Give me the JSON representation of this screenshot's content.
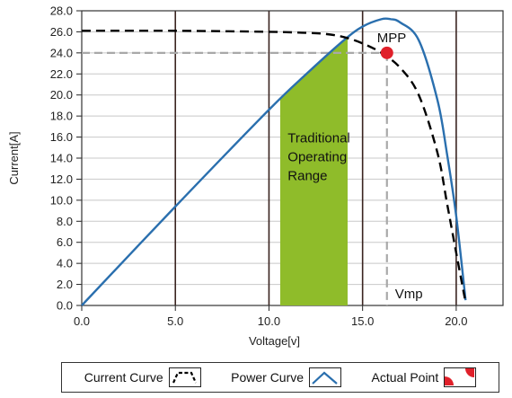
{
  "chart_data": {
    "type": "line",
    "xlabel": "Voltage[v]",
    "ylabel": "Current[A]",
    "xlim": [
      0,
      22.5
    ],
    "ylim": [
      0,
      28
    ],
    "x_ticks": [
      "0.0",
      "5.0",
      "10.0",
      "15.0",
      "20.0"
    ],
    "y_ticks": [
      "0.0",
      "2.0",
      "4.0",
      "6.0",
      "8.0",
      "10.0",
      "12.0",
      "14.0",
      "16.0",
      "18.0",
      "20.0",
      "22.0",
      "24.0",
      "26.0",
      "28.0"
    ],
    "grid": "horizontal-gray-vertical-dark",
    "series": [
      {
        "name": "Current Curve",
        "style": "dashed",
        "color": "#000000",
        "x": [
          0,
          5,
          10,
          12,
          13,
          14,
          15,
          16,
          17,
          18,
          19,
          19.5,
          20,
          20.5
        ],
        "y": [
          26.1,
          26.1,
          26.0,
          25.9,
          25.8,
          25.5,
          24.9,
          24.0,
          22.6,
          20.0,
          14.5,
          9.8,
          5.0,
          0.3
        ]
      },
      {
        "name": "Power Curve",
        "style": "solid",
        "color": "#2a6fae",
        "x": [
          0,
          5,
          10,
          12,
          14,
          15,
          16,
          16.5,
          17,
          18,
          19,
          19.5,
          20,
          20.5
        ],
        "y": [
          0,
          9.4,
          18.6,
          22.0,
          25.2,
          26.5,
          27.2,
          27.2,
          26.9,
          25.2,
          19.5,
          14.5,
          8.5,
          0.5
        ]
      }
    ],
    "mpp": {
      "label": "MPP",
      "x": 16.3,
      "y": 24.0
    },
    "vmp_label": "Vmp",
    "operating_range": {
      "label": [
        "Traditional",
        "Operating",
        "Range"
      ],
      "x_start": 10.6,
      "x_end": 14.2,
      "color": "#8fbc2a"
    },
    "legend": [
      {
        "label": "Current Curve"
      },
      {
        "label": "Power Curve"
      },
      {
        "label": "Actual Point"
      }
    ]
  },
  "colors": {
    "current": "#000000",
    "power": "#2a6fae",
    "point": "#e0202a",
    "range": "#8fbc2a",
    "grid": "#c8c8c8",
    "vline": "#3a2420",
    "ref": "#a8a8a8"
  }
}
